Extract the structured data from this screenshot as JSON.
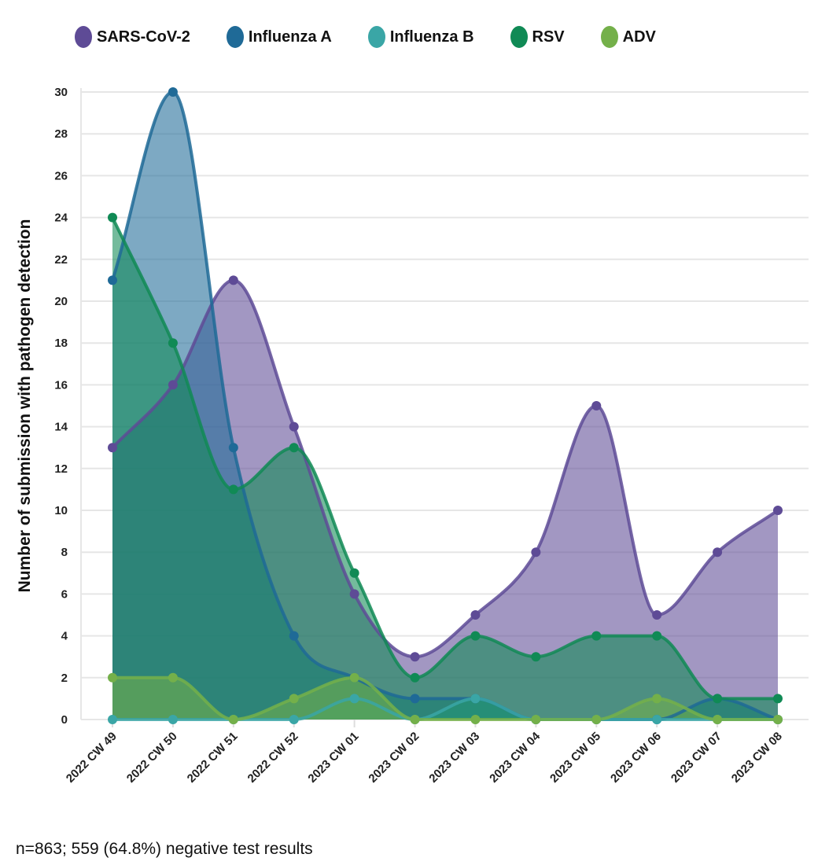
{
  "chart_data": {
    "type": "area",
    "title": "",
    "xlabel": "",
    "ylabel": "Number of submission with pathogen detection",
    "ylim": [
      0,
      30
    ],
    "yticks": [
      0,
      2,
      4,
      6,
      8,
      10,
      12,
      14,
      16,
      18,
      20,
      22,
      24,
      26,
      28,
      30
    ],
    "grid": true,
    "legend_position": "top",
    "categories": [
      "2022 CW 49",
      "2022 CW 50",
      "2022 CW 51",
      "2022 CW 52",
      "2023 CW 01",
      "2023 CW 02",
      "2023 CW 03",
      "2023 CW 04",
      "2023 CW 05",
      "2023 CW 06",
      "2023 CW 07",
      "2023 CW 08"
    ],
    "series": [
      {
        "name": "SARS-CoV-2",
        "color": "#5e4b96",
        "values": [
          13,
          16,
          21,
          14,
          6,
          3,
          5,
          8,
          15,
          5,
          8,
          10
        ]
      },
      {
        "name": "Influenza A",
        "color": "#1f6a97",
        "values": [
          21,
          30,
          13,
          4,
          2,
          1,
          1,
          0,
          0,
          0,
          1,
          0
        ]
      },
      {
        "name": "Influenza B",
        "color": "#3aa6a6",
        "values": [
          0,
          0,
          0,
          0,
          1,
          0,
          1,
          0,
          0,
          0,
          0,
          0
        ]
      },
      {
        "name": "RSV",
        "color": "#108a55",
        "values": [
          24,
          18,
          11,
          13,
          7,
          2,
          4,
          3,
          4,
          4,
          1,
          1
        ]
      },
      {
        "name": "ADV",
        "color": "#74b04a",
        "values": [
          2,
          2,
          0,
          1,
          2,
          0,
          0,
          0,
          0,
          1,
          0,
          0
        ]
      }
    ]
  },
  "footnote": "n=863; 559 (64.8%) negative test results"
}
